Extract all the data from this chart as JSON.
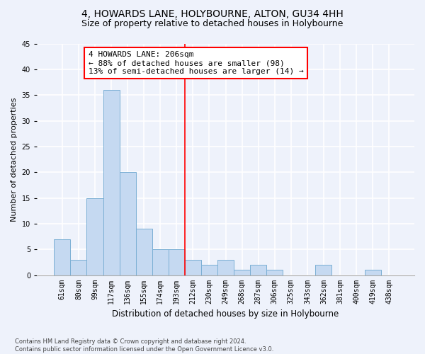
{
  "title": "4, HOWARDS LANE, HOLYBOURNE, ALTON, GU34 4HH",
  "subtitle": "Size of property relative to detached houses in Holybourne",
  "xlabel": "Distribution of detached houses by size in Holybourne",
  "ylabel": "Number of detached properties",
  "categories": [
    "61sqm",
    "80sqm",
    "99sqm",
    "117sqm",
    "136sqm",
    "155sqm",
    "174sqm",
    "193sqm",
    "212sqm",
    "230sqm",
    "249sqm",
    "268sqm",
    "287sqm",
    "306sqm",
    "325sqm",
    "343sqm",
    "362sqm",
    "381sqm",
    "400sqm",
    "419sqm",
    "438sqm"
  ],
  "values": [
    7,
    3,
    15,
    36,
    20,
    9,
    5,
    5,
    3,
    2,
    3,
    1,
    2,
    1,
    0,
    0,
    2,
    0,
    0,
    1,
    0
  ],
  "bar_color": "#c5d9f1",
  "bar_edge_color": "#7bafd4",
  "vline_x_index": 8,
  "vline_color": "red",
  "annotation_text": "4 HOWARDS LANE: 206sqm\n← 88% of detached houses are smaller (98)\n13% of semi-detached houses are larger (14) →",
  "annotation_box_color": "white",
  "annotation_box_edge_color": "red",
  "ylim": [
    0,
    45
  ],
  "yticks": [
    0,
    5,
    10,
    15,
    20,
    25,
    30,
    35,
    40,
    45
  ],
  "footnote": "Contains HM Land Registry data © Crown copyright and database right 2024.\nContains public sector information licensed under the Open Government Licence v3.0.",
  "background_color": "#eef2fb",
  "grid_color": "#ffffff",
  "title_fontsize": 10,
  "subtitle_fontsize": 9,
  "xlabel_fontsize": 8.5,
  "ylabel_fontsize": 8,
  "tick_fontsize": 7,
  "annotation_fontsize": 8,
  "footnote_fontsize": 6
}
